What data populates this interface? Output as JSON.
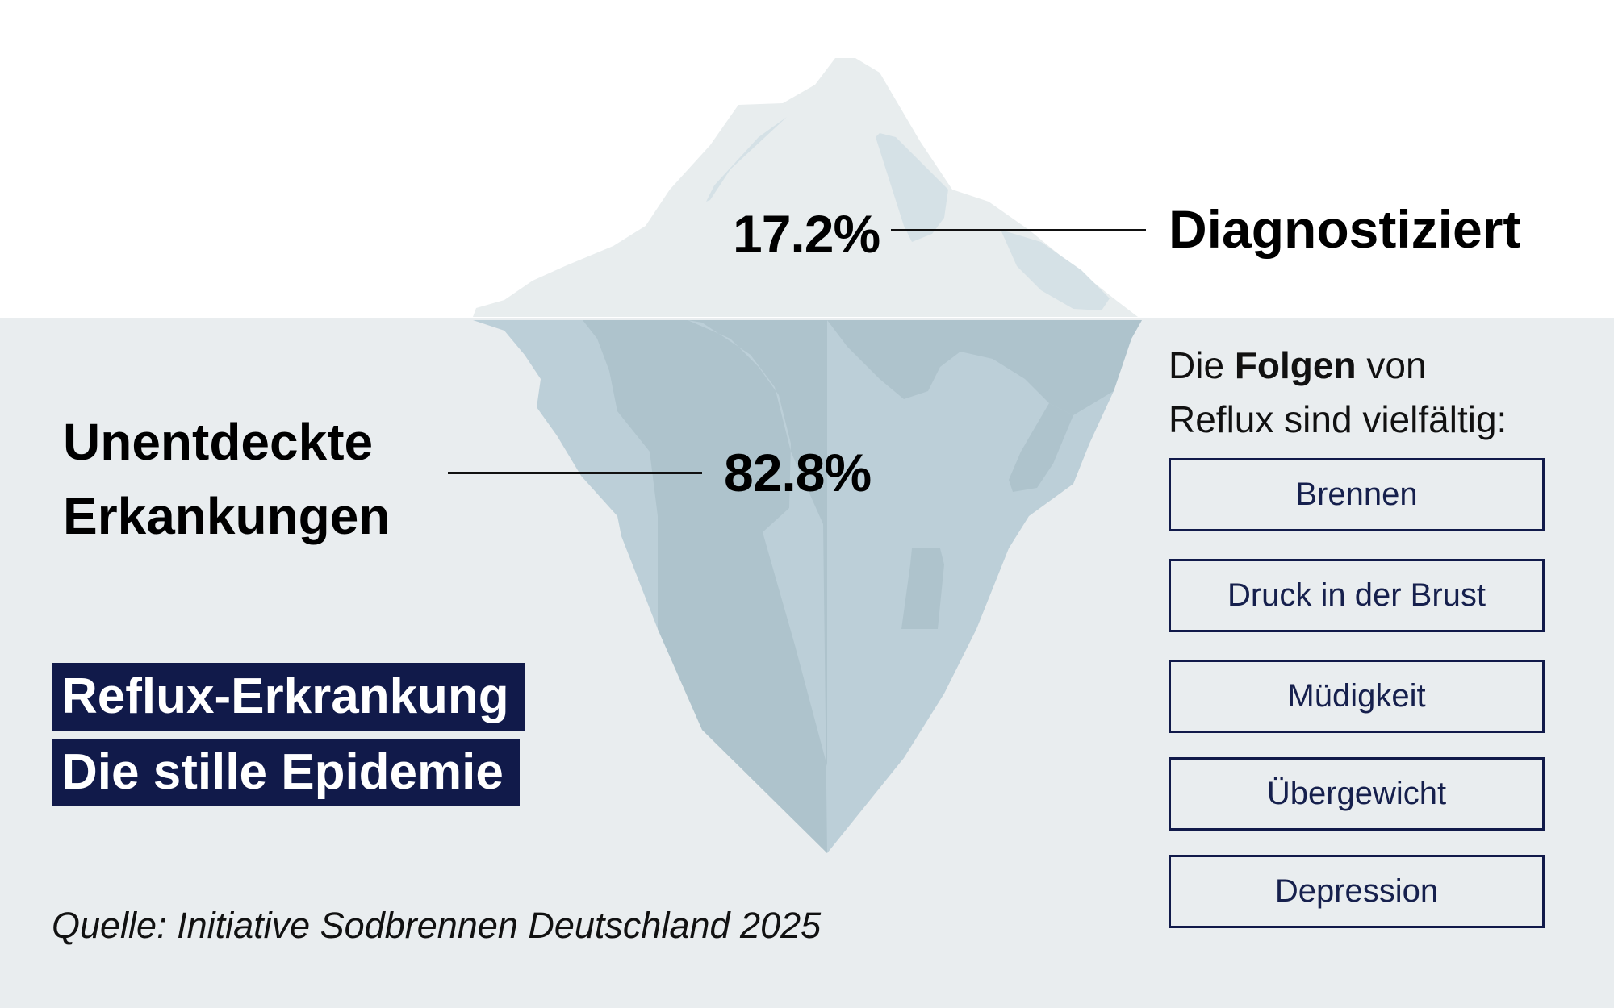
{
  "iceberg": {
    "above": {
      "percent": "17.2%",
      "label": "Diagnostiziert",
      "share": 17.2
    },
    "below": {
      "percent": "82.8%",
      "label_line1": "Unentdeckte",
      "label_line2": "Erkankungen",
      "share": 82.8
    }
  },
  "headline": {
    "line1": "Reflux-Erkrankung",
    "line2": "Die stille Epidemie"
  },
  "consequences": {
    "intro_pre": "Die",
    "intro_bold": "Folgen",
    "intro_post": "von",
    "intro_line2": "Reflux sind vielfältig:",
    "items": [
      "Brennen",
      "Druck in der Brust",
      "Müdigkeit",
      "Übergewicht",
      "Depression"
    ]
  },
  "source": "Quelle: Initiative Sodbrennen Deutschland 2025",
  "colors": {
    "navy": "#111a4a",
    "water": "#e9edef",
    "ice_above": "#e8edee",
    "ice_above_shade": "#d5e1e6",
    "ice_below": "#bccfd8",
    "ice_below_shade": "#aec3cc"
  }
}
